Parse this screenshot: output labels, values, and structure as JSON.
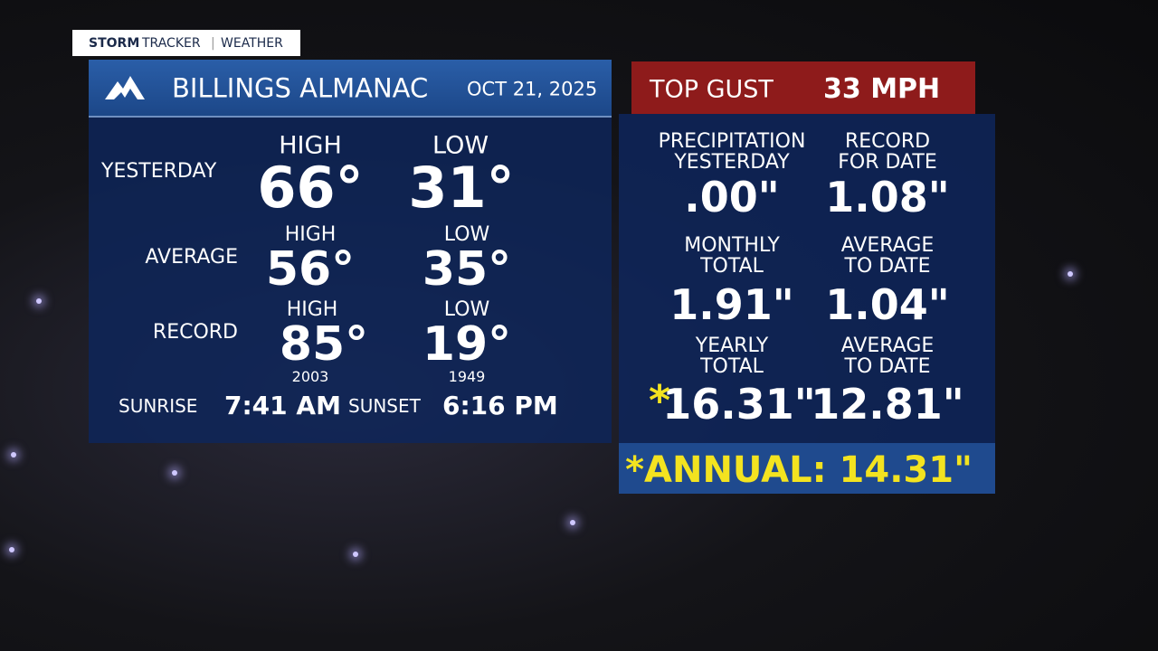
{
  "brand": {
    "name_bold": "STORM",
    "name_light": "TRACKER",
    "section": "WEATHER"
  },
  "header": {
    "title": "BILLINGS ALMANAC",
    "date": "OCT 21, 2025"
  },
  "temperature": {
    "yesterday": {
      "label": "YESTERDAY",
      "high_label": "HIGH",
      "high": "66°",
      "low_label": "LOW",
      "low": "31°"
    },
    "average": {
      "label": "AVERAGE",
      "high_label": "HIGH",
      "high": "56°",
      "low_label": "LOW",
      "low": "35°"
    },
    "record": {
      "label": "RECORD",
      "high_label": "HIGH",
      "high": "85°",
      "high_year": "2003",
      "low_label": "LOW",
      "low": "19°",
      "low_year": "1949"
    },
    "sun": {
      "sunrise_label": "SUNRISE",
      "sunrise": "7:41 AM",
      "sunset_label": "SUNSET",
      "sunset": "6:16 PM"
    }
  },
  "gust": {
    "label": "TOP GUST",
    "value": "33 MPH"
  },
  "precipitation": [
    {
      "label": [
        "PRECIPITATION",
        "YESTERDAY"
      ],
      "value": ".00\""
    },
    {
      "label": [
        "RECORD",
        "FOR DATE"
      ],
      "value": "1.08\""
    },
    {
      "label": [
        "MONTHLY",
        "TOTAL"
      ],
      "value": "1.91\""
    },
    {
      "label": [
        "AVERAGE",
        "TO DATE"
      ],
      "value": "1.04\""
    },
    {
      "label": [
        "YEARLY",
        "TOTAL"
      ],
      "marker": "*",
      "value": "16.31\""
    },
    {
      "label": [
        "AVERAGE",
        "TO DATE"
      ],
      "value": "12.81\""
    }
  ],
  "annual": "*ANNUAL: 14.31\""
}
